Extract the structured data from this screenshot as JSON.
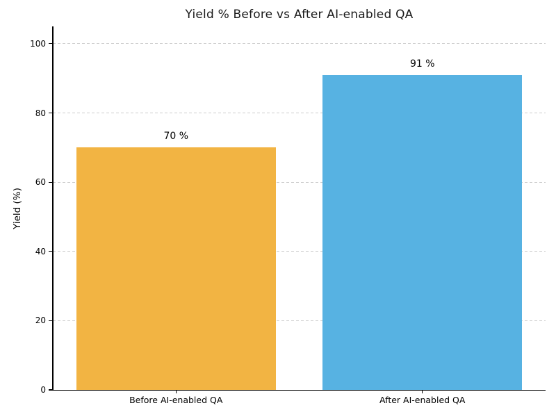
{
  "chart_data": {
    "type": "bar",
    "title": "Yield % Before vs After AI-enabled QA",
    "ylabel": "Yield (%)",
    "xlabel": "",
    "categories": [
      "Before AI-enabled QA",
      "After AI-enabled QA"
    ],
    "values": [
      70,
      91
    ],
    "value_labels": [
      "70 %",
      "91 %"
    ],
    "bar_colors": [
      "#F2B443",
      "#57B2E2"
    ],
    "yticks": [
      0,
      20,
      40,
      60,
      80,
      100
    ],
    "ylim": [
      0,
      105
    ],
    "grid": "horizontal-dashed",
    "gridline_color": "#cccccc",
    "axis_color": "#000000",
    "title_color": "#1a1a1a",
    "legend": "none"
  }
}
